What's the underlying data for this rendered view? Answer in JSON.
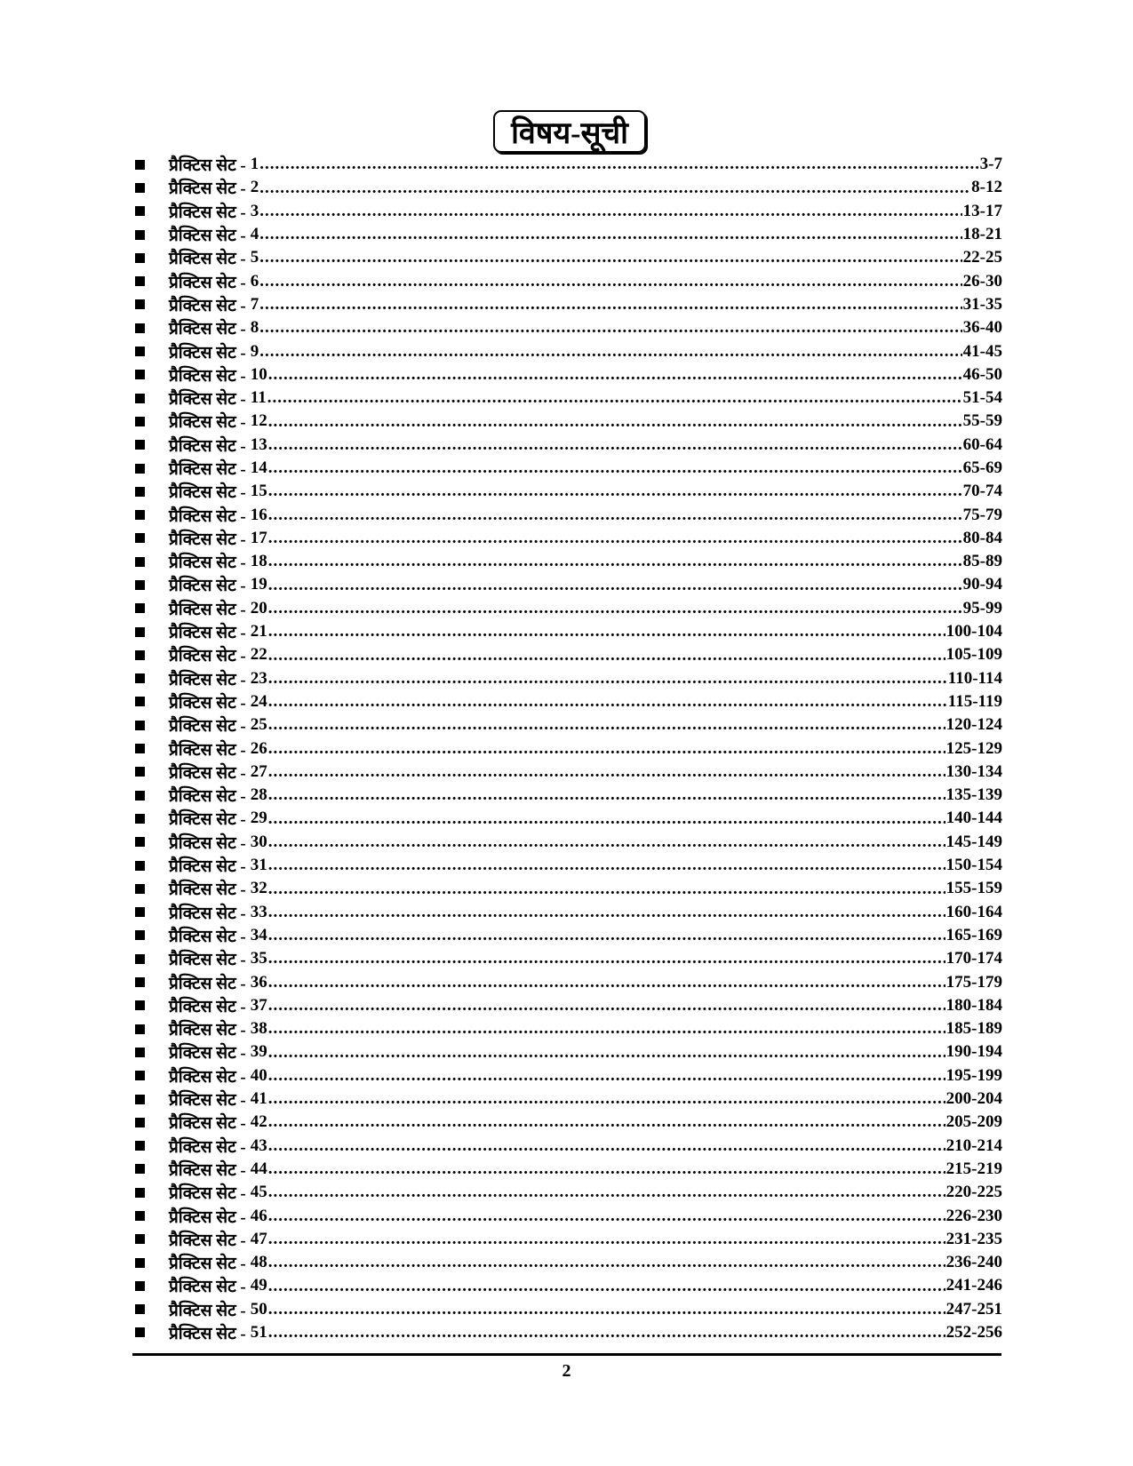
{
  "title": "विषय-सूची",
  "entry_label": "प्रैक्टिस सेट -",
  "entries": [
    {
      "set": "1",
      "pages": "3-7"
    },
    {
      "set": "2",
      "pages": "8-12"
    },
    {
      "set": "3",
      "pages": "13-17"
    },
    {
      "set": "4",
      "pages": "18-21"
    },
    {
      "set": "5",
      "pages": "22-25"
    },
    {
      "set": "6",
      "pages": "26-30"
    },
    {
      "set": "7",
      "pages": "31-35"
    },
    {
      "set": "8",
      "pages": "36-40"
    },
    {
      "set": "9",
      "pages": "41-45"
    },
    {
      "set": "10",
      "pages": "46-50"
    },
    {
      "set": "11",
      "pages": "51-54"
    },
    {
      "set": "12",
      "pages": "55-59"
    },
    {
      "set": "13",
      "pages": "60-64"
    },
    {
      "set": "14",
      "pages": "65-69"
    },
    {
      "set": "15",
      "pages": "70-74"
    },
    {
      "set": "16",
      "pages": "75-79"
    },
    {
      "set": "17",
      "pages": "80-84"
    },
    {
      "set": "18",
      "pages": "85-89"
    },
    {
      "set": "19",
      "pages": "90-94"
    },
    {
      "set": "20",
      "pages": "95-99"
    },
    {
      "set": "21",
      "pages": "100-104"
    },
    {
      "set": "22",
      "pages": "105-109"
    },
    {
      "set": "23",
      "pages": "110-114"
    },
    {
      "set": "24",
      "pages": "115-119"
    },
    {
      "set": "25",
      "pages": "120-124"
    },
    {
      "set": "26",
      "pages": "125-129"
    },
    {
      "set": "27",
      "pages": "130-134"
    },
    {
      "set": "28",
      "pages": "135-139"
    },
    {
      "set": "29",
      "pages": "140-144"
    },
    {
      "set": "30",
      "pages": "145-149"
    },
    {
      "set": "31",
      "pages": "150-154"
    },
    {
      "set": "32",
      "pages": "155-159"
    },
    {
      "set": "33",
      "pages": "160-164"
    },
    {
      "set": "34",
      "pages": "165-169"
    },
    {
      "set": "35",
      "pages": "170-174"
    },
    {
      "set": "36",
      "pages": "175-179"
    },
    {
      "set": "37",
      "pages": "180-184"
    },
    {
      "set": "38",
      "pages": "185-189"
    },
    {
      "set": "39",
      "pages": "190-194"
    },
    {
      "set": "40",
      "pages": "195-199"
    },
    {
      "set": "41",
      "pages": "200-204"
    },
    {
      "set": "42",
      "pages": "205-209"
    },
    {
      "set": "43",
      "pages": "210-214"
    },
    {
      "set": "44",
      "pages": "215-219"
    },
    {
      "set": "45",
      "pages": "220-225"
    },
    {
      "set": "46",
      "pages": "226-230"
    },
    {
      "set": "47",
      "pages": "231-235"
    },
    {
      "set": "48",
      "pages": "236-240"
    },
    {
      "set": "49",
      "pages": "241-246"
    },
    {
      "set": "50",
      "pages": "247-251"
    },
    {
      "set": "51",
      "pages": "252-256"
    }
  ],
  "page_number": "2"
}
